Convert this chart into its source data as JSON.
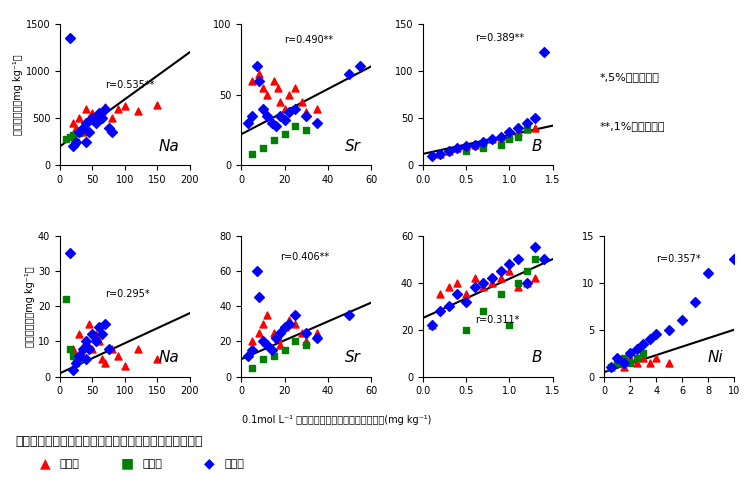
{
  "title": "図３　土壌中元素濃度と果梗、種子中元素濃度との関係",
  "legend_labels": [
    "鳥取、",
    "長野、",
    "その他"
  ],
  "legend_colors": [
    "#ff0000",
    "#008000",
    "#0000ff"
  ],
  "xlabel": "0.1mol L⁻¹ 塩酸抽出法による土壌中元素濃度(mg kg⁻¹)",
  "ylabel_top": "果梗中濃度（mg kg⁻¹）",
  "ylabel_bottom": "種子中濃度（mg kg⁻¹）",
  "note1": "*,5%水準で有意",
  "note2": "**,1%水準で有意",
  "subplots": [
    {
      "row": 0,
      "col": 0,
      "element": "Na",
      "xlim": [
        0,
        200
      ],
      "ylim": [
        0,
        1500
      ],
      "xticks": [
        0,
        50,
        100,
        150,
        200
      ],
      "yticks": [
        0,
        500,
        1000,
        1500
      ],
      "r_label": "r=0.535**",
      "r_x": 70,
      "r_y": 800,
      "line_x": [
        0,
        200
      ],
      "line_y": [
        200,
        1200
      ],
      "red_x": [
        20,
        25,
        30,
        35,
        40,
        45,
        50,
        55,
        60,
        65,
        70,
        80,
        90,
        100,
        120,
        150
      ],
      "red_y": [
        450,
        400,
        500,
        350,
        600,
        500,
        550,
        480,
        530,
        580,
        620,
        500,
        600,
        630,
        580,
        640
      ],
      "green_x": [
        10,
        15,
        20,
        25,
        30
      ],
      "green_y": [
        280,
        300,
        320,
        250,
        340
      ],
      "blue_x": [
        15,
        20,
        25,
        30,
        35,
        40,
        45,
        50,
        55,
        60,
        65,
        70,
        75,
        80,
        40
      ],
      "blue_y": [
        1350,
        200,
        250,
        350,
        400,
        450,
        350,
        500,
        450,
        550,
        500,
        600,
        400,
        350,
        250
      ]
    },
    {
      "row": 0,
      "col": 1,
      "element": "Sr",
      "xlim": [
        0,
        60
      ],
      "ylim": [
        0,
        100
      ],
      "xticks": [
        0,
        20,
        40,
        60
      ],
      "yticks": [
        0,
        50,
        100
      ],
      "r_label": "r=0.490**",
      "r_x": 20,
      "r_y": 85,
      "line_x": [
        0,
        60
      ],
      "line_y": [
        22,
        70
      ],
      "red_x": [
        5,
        8,
        10,
        12,
        15,
        17,
        18,
        20,
        22,
        25,
        28,
        30,
        35
      ],
      "red_y": [
        60,
        65,
        55,
        50,
        60,
        55,
        45,
        40,
        50,
        55,
        45,
        38,
        40
      ],
      "green_x": [
        5,
        10,
        15,
        20,
        25,
        30
      ],
      "green_y": [
        8,
        12,
        18,
        22,
        28,
        25
      ],
      "blue_x": [
        3,
        5,
        7,
        8,
        10,
        12,
        14,
        16,
        18,
        20,
        22,
        25,
        30,
        35,
        50,
        55
      ],
      "blue_y": [
        30,
        35,
        70,
        60,
        40,
        35,
        30,
        28,
        35,
        32,
        38,
        40,
        35,
        30,
        65,
        70
      ]
    },
    {
      "row": 0,
      "col": 2,
      "element": "B",
      "xlim": [
        0,
        1.5
      ],
      "ylim": [
        0,
        150
      ],
      "xticks": [
        0,
        0.5,
        1.0,
        1.5
      ],
      "yticks": [
        0,
        50,
        100,
        150
      ],
      "r_label": "r=0.389**",
      "r_x": 0.6,
      "r_y": 130,
      "line_x": [
        0,
        1.5
      ],
      "line_y": [
        12,
        42
      ],
      "red_x": [
        0.2,
        0.3,
        0.4,
        0.5,
        0.6,
        0.7,
        0.8,
        0.9,
        1.0,
        1.1,
        1.2,
        1.3
      ],
      "red_y": [
        12,
        15,
        18,
        20,
        22,
        25,
        28,
        30,
        32,
        35,
        38,
        40
      ],
      "green_x": [
        0.5,
        0.7,
        0.9,
        1.0,
        1.1,
        1.2
      ],
      "green_y": [
        15,
        18,
        22,
        28,
        30,
        38
      ],
      "blue_x": [
        0.1,
        0.2,
        0.3,
        0.4,
        0.5,
        0.6,
        0.7,
        0.8,
        0.9,
        1.0,
        1.1,
        1.2,
        1.3,
        1.4
      ],
      "blue_y": [
        10,
        12,
        15,
        18,
        20,
        22,
        25,
        28,
        30,
        35,
        40,
        45,
        50,
        120
      ]
    },
    {
      "row": 1,
      "col": 0,
      "element": "Na",
      "xlim": [
        0,
        200
      ],
      "ylim": [
        0,
        40
      ],
      "xticks": [
        0,
        50,
        100,
        150,
        200
      ],
      "yticks": [
        0,
        10,
        20,
        30,
        40
      ],
      "r_label": "r=0.295*",
      "r_x": 70,
      "r_y": 22,
      "line_x": [
        0,
        200
      ],
      "line_y": [
        1,
        18
      ],
      "red_x": [
        20,
        25,
        30,
        35,
        40,
        45,
        50,
        55,
        60,
        65,
        70,
        80,
        90,
        100,
        120,
        150
      ],
      "red_y": [
        8,
        5,
        12,
        6,
        10,
        15,
        8,
        12,
        10,
        5,
        4,
        8,
        6,
        3,
        8,
        5
      ],
      "green_x": [
        10,
        15,
        20,
        25,
        30
      ],
      "green_y": [
        22,
        8,
        6,
        4,
        5
      ],
      "blue_x": [
        15,
        20,
        25,
        30,
        35,
        40,
        45,
        50,
        55,
        60,
        65,
        70,
        75,
        40
      ],
      "blue_y": [
        35,
        2,
        4,
        6,
        8,
        10,
        8,
        12,
        10,
        14,
        12,
        15,
        8,
        5
      ]
    },
    {
      "row": 1,
      "col": 1,
      "element": "Sr",
      "xlim": [
        0,
        60
      ],
      "ylim": [
        0,
        80
      ],
      "xticks": [
        0,
        20,
        40,
        60
      ],
      "yticks": [
        0,
        20,
        40,
        60,
        80
      ],
      "r_label": "r=0.406**",
      "r_x": 18,
      "r_y": 65,
      "line_x": [
        0,
        60
      ],
      "line_y": [
        10,
        42
      ],
      "red_x": [
        5,
        8,
        10,
        12,
        15,
        17,
        18,
        20,
        22,
        25,
        28,
        30,
        35
      ],
      "red_y": [
        20,
        25,
        30,
        35,
        25,
        22,
        18,
        28,
        32,
        30,
        25,
        20,
        25
      ],
      "green_x": [
        5,
        10,
        15,
        20,
        25,
        30
      ],
      "green_y": [
        5,
        10,
        12,
        15,
        20,
        18
      ],
      "blue_x": [
        3,
        5,
        7,
        8,
        10,
        12,
        14,
        16,
        18,
        20,
        22,
        25,
        30,
        35,
        50
      ],
      "blue_y": [
        12,
        15,
        60,
        45,
        20,
        18,
        15,
        22,
        25,
        28,
        30,
        35,
        25,
        22,
        35
      ]
    },
    {
      "row": 1,
      "col": 2,
      "element": "B",
      "xlim": [
        0,
        1.5
      ],
      "ylim": [
        0,
        60
      ],
      "xticks": [
        0,
        0.5,
        1.0,
        1.5
      ],
      "yticks": [
        0,
        20,
        40,
        60
      ],
      "r_label": "r=0.311*",
      "r_x": 0.6,
      "r_y": 22,
      "line_x": [
        0,
        1.5
      ],
      "line_y": [
        25,
        50
      ],
      "red_x": [
        0.1,
        0.2,
        0.3,
        0.4,
        0.5,
        0.6,
        0.7,
        0.8,
        0.9,
        1.0,
        1.1,
        1.2,
        1.3
      ],
      "red_y": [
        22,
        35,
        38,
        40,
        35,
        42,
        38,
        40,
        42,
        45,
        38,
        40,
        42
      ],
      "green_x": [
        0.5,
        0.7,
        0.9,
        1.0,
        1.1,
        1.2,
        1.3
      ],
      "green_y": [
        20,
        28,
        35,
        22,
        40,
        45,
        50
      ],
      "blue_x": [
        0.1,
        0.2,
        0.3,
        0.4,
        0.5,
        0.6,
        0.7,
        0.8,
        0.9,
        1.0,
        1.1,
        1.2,
        1.3,
        1.4
      ],
      "blue_y": [
        22,
        28,
        30,
        35,
        32,
        38,
        40,
        42,
        45,
        48,
        50,
        40,
        55,
        50
      ]
    },
    {
      "row": 1,
      "col": 3,
      "element": "Ni",
      "xlim": [
        0,
        10
      ],
      "ylim": [
        0,
        15
      ],
      "xticks": [
        0,
        2,
        4,
        6,
        8,
        10
      ],
      "yticks": [
        0,
        5,
        10,
        15
      ],
      "r_label": "r=0.357*",
      "r_x": 4,
      "r_y": 12,
      "line_x": [
        0,
        10
      ],
      "line_y": [
        0.5,
        5
      ],
      "red_x": [
        0.5,
        1.0,
        1.5,
        2.0,
        2.5,
        3.0,
        3.5,
        4.0,
        5.0
      ],
      "red_y": [
        1.0,
        1.5,
        1.0,
        2.0,
        1.5,
        2.0,
        1.5,
        2.0,
        1.5
      ],
      "green_x": [
        0.5,
        1.0,
        1.5,
        2.0,
        2.5,
        3.0
      ],
      "green_y": [
        1.0,
        1.5,
        2.0,
        1.5,
        2.0,
        2.5
      ],
      "blue_x": [
        0.5,
        1.0,
        1.5,
        2.0,
        2.5,
        3.0,
        3.5,
        4.0,
        5.0,
        6.0,
        7.0,
        8.0,
        10.0
      ],
      "blue_y": [
        1.0,
        2.0,
        1.5,
        2.5,
        3.0,
        3.5,
        4.0,
        4.5,
        5.0,
        6.0,
        8.0,
        11.0,
        12.5
      ]
    }
  ]
}
